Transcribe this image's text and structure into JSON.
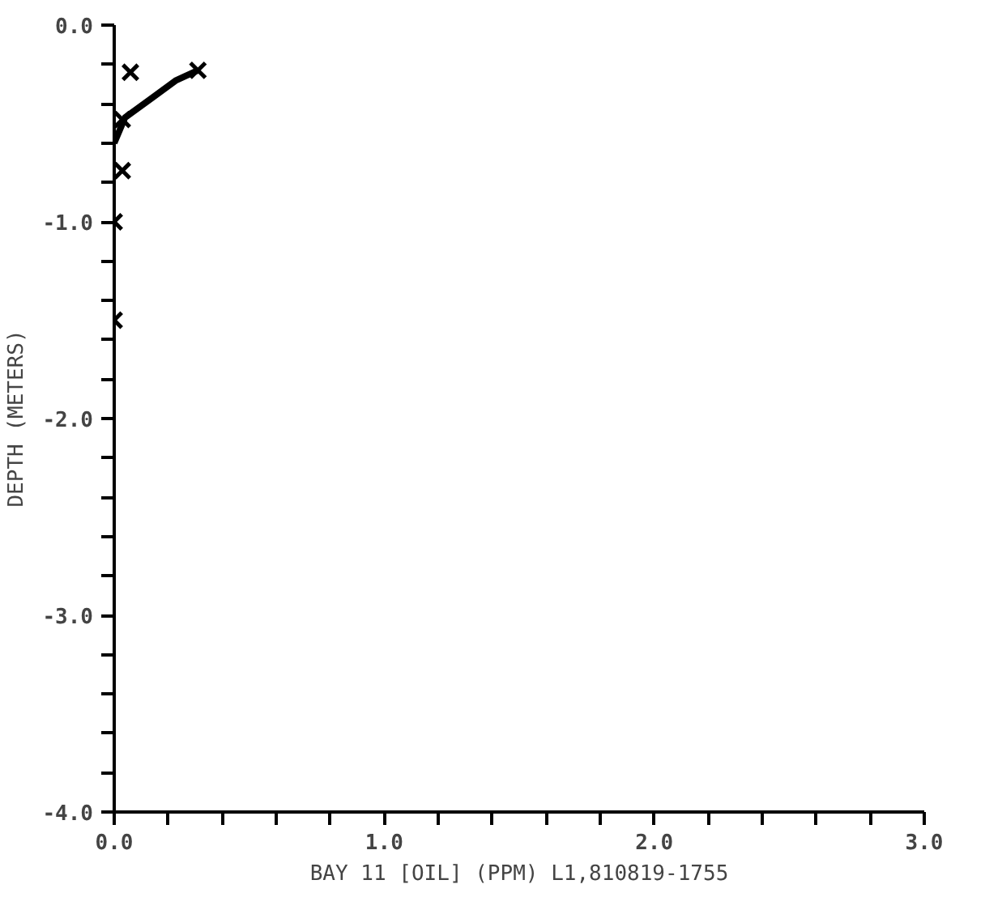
{
  "chart_data": {
    "type": "line",
    "xlabel": "BAY 11 [OIL] (PPM) L1,810819-1755",
    "ylabel": "DEPTH (METERS)",
    "xlim": [
      0,
      3
    ],
    "ylim": [
      -4,
      0
    ],
    "xticks": [
      {
        "value": 0,
        "label": "0.0"
      },
      {
        "value": 0.2,
        "label": null
      },
      {
        "value": 0.4,
        "label": null
      },
      {
        "value": 0.6,
        "label": null
      },
      {
        "value": 0.8,
        "label": null
      },
      {
        "value": 1,
        "label": "1.0"
      },
      {
        "value": 1.2,
        "label": null
      },
      {
        "value": 1.4,
        "label": null
      },
      {
        "value": 1.6,
        "label": null
      },
      {
        "value": 1.8,
        "label": null
      },
      {
        "value": 2,
        "label": "2.0"
      },
      {
        "value": 2.2,
        "label": null
      },
      {
        "value": 2.4,
        "label": null
      },
      {
        "value": 2.6,
        "label": null
      },
      {
        "value": 2.8,
        "label": null
      },
      {
        "value": 3,
        "label": "3.0"
      }
    ],
    "yticks": [
      {
        "value": 0,
        "label": "0.0"
      },
      {
        "value": -0.2,
        "label": null
      },
      {
        "value": -0.4,
        "label": null
      },
      {
        "value": -0.6,
        "label": null
      },
      {
        "value": -0.8,
        "label": null
      },
      {
        "value": -1,
        "label": "-1.0"
      },
      {
        "value": -1.2,
        "label": null
      },
      {
        "value": -1.4,
        "label": null
      },
      {
        "value": -1.6,
        "label": null
      },
      {
        "value": -1.8,
        "label": null
      },
      {
        "value": -2,
        "label": "-2.0"
      },
      {
        "value": -2.2,
        "label": null
      },
      {
        "value": -2.4,
        "label": null
      },
      {
        "value": -2.6,
        "label": null
      },
      {
        "value": -2.8,
        "label": null
      },
      {
        "value": -3,
        "label": "-3.0"
      },
      {
        "value": -3.2,
        "label": null
      },
      {
        "value": -3.4,
        "label": null
      },
      {
        "value": -3.6,
        "label": null
      },
      {
        "value": -3.8,
        "label": null
      },
      {
        "value": -4,
        "label": "-4.0"
      }
    ],
    "grid": false,
    "series": [
      {
        "type": "scatter",
        "marker": "cross",
        "color": "#000000",
        "x": [
          0.06,
          0.31,
          0.03,
          0.03,
          0.0,
          0.0
        ],
        "values": [
          -0.24,
          -0.23,
          -0.48,
          -0.74,
          -1.0,
          -1.5
        ]
      },
      {
        "color": "#000000",
        "x": [
          0.0,
          0.04,
          0.14,
          0.23,
          0.31
        ],
        "values": [
          -0.6,
          -0.47,
          -0.37,
          -0.28,
          -0.23
        ]
      }
    ]
  }
}
